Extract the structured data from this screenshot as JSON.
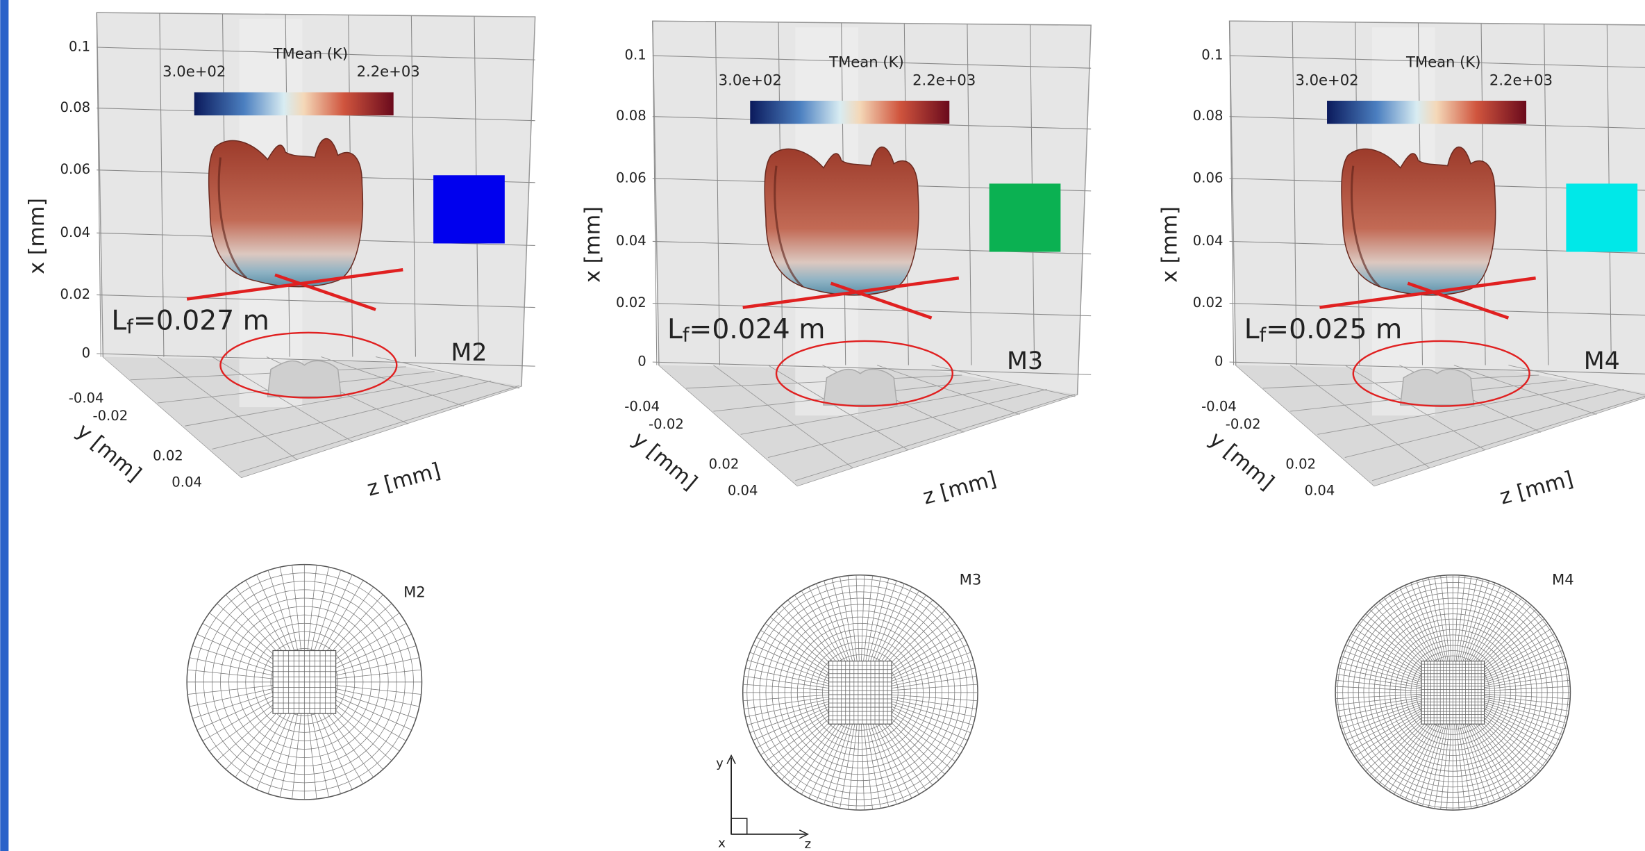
{
  "figure": {
    "panels": [
      {
        "model": "M2",
        "colorbar": {
          "title": "TMean (K)",
          "min": "3.0e+02",
          "max": "2.2e+03"
        },
        "x_axis": {
          "label": "x [mm]",
          "ticks": [
            "0.1",
            "0.08",
            "0.06",
            "0.04",
            "0.02",
            "0"
          ]
        },
        "y_axis": {
          "label": "y [mm]",
          "ticks": [
            "-0.04",
            "-0.02",
            "0.02",
            "0.04"
          ]
        },
        "z_axis": {
          "label": "z [mm]"
        },
        "flame_length": {
          "symbol": "L",
          "subscript": "f",
          "text": "=0.027 m"
        },
        "marker_color": "#0000ee"
      },
      {
        "model": "M3",
        "colorbar": {
          "title": "TMean (K)",
          "min": "3.0e+02",
          "max": "2.2e+03"
        },
        "x_axis": {
          "label": "x [mm]",
          "ticks": [
            "0.1",
            "0.08",
            "0.06",
            "0.04",
            "0.02",
            "0"
          ]
        },
        "y_axis": {
          "label": "y [mm]",
          "ticks": [
            "-0.04",
            "-0.02",
            "0.02",
            "0.04"
          ]
        },
        "z_axis": {
          "label": "z [mm]"
        },
        "flame_length": {
          "symbol": "L",
          "subscript": "f",
          "text": "=0.024 m"
        },
        "marker_color": "#0bb152"
      },
      {
        "model": "M4",
        "colorbar": {
          "title": "TMean (K)",
          "min": "3.0e+02",
          "max": "2.2e+03"
        },
        "x_axis": {
          "label": "x [mm]",
          "ticks": [
            "0.1",
            "0.08",
            "0.06",
            "0.04",
            "0.02",
            "0"
          ]
        },
        "y_axis": {
          "label": "y [mm]",
          "ticks": [
            "-0.04",
            "-0.02",
            "0.02",
            "0.04"
          ]
        },
        "z_axis": {
          "label": "z [mm]"
        },
        "flame_length": {
          "symbol": "L",
          "subscript": "f",
          "text": "=0.025 m"
        },
        "marker_color": "#00e8e8"
      }
    ],
    "meshes": [
      {
        "label": "M2"
      },
      {
        "label": "M3"
      },
      {
        "label": "M4"
      }
    ],
    "triad": {
      "y": "y",
      "x": "x",
      "z": "z"
    }
  }
}
